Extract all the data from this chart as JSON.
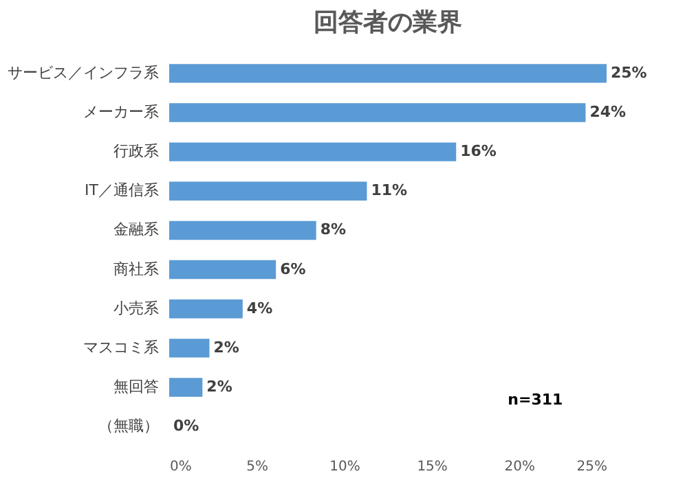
{
  "chart_data": {
    "type": "bar",
    "orientation": "horizontal",
    "title": "回答者の業界",
    "categories": [
      "サービス／インフラ系",
      "メーカー系",
      "行政系",
      "IT／通信系",
      "金融系",
      "商社系",
      "小売系",
      "マスコミ系",
      "無回答",
      "（無職）"
    ],
    "values": [
      25.0,
      23.8,
      16.4,
      11.3,
      8.4,
      6.1,
      4.2,
      2.3,
      1.9,
      0
    ],
    "value_labels": [
      "25%",
      "24%",
      "16%",
      "11%",
      "8%",
      "6%",
      "4%",
      "2%",
      "2%",
      "0%"
    ],
    "color": "#5b9bd5",
    "xlim": [
      0,
      25
    ],
    "xticks": [
      {
        "value": 0,
        "label": "0%"
      },
      {
        "value": 5,
        "label": "5%"
      },
      {
        "value": 10,
        "label": "10%"
      },
      {
        "value": 15,
        "label": "15%"
      },
      {
        "value": 20,
        "label": "20%"
      },
      {
        "value": 25,
        "label": "25%"
      }
    ],
    "grid": false,
    "annotations": [
      "n=311"
    ]
  }
}
